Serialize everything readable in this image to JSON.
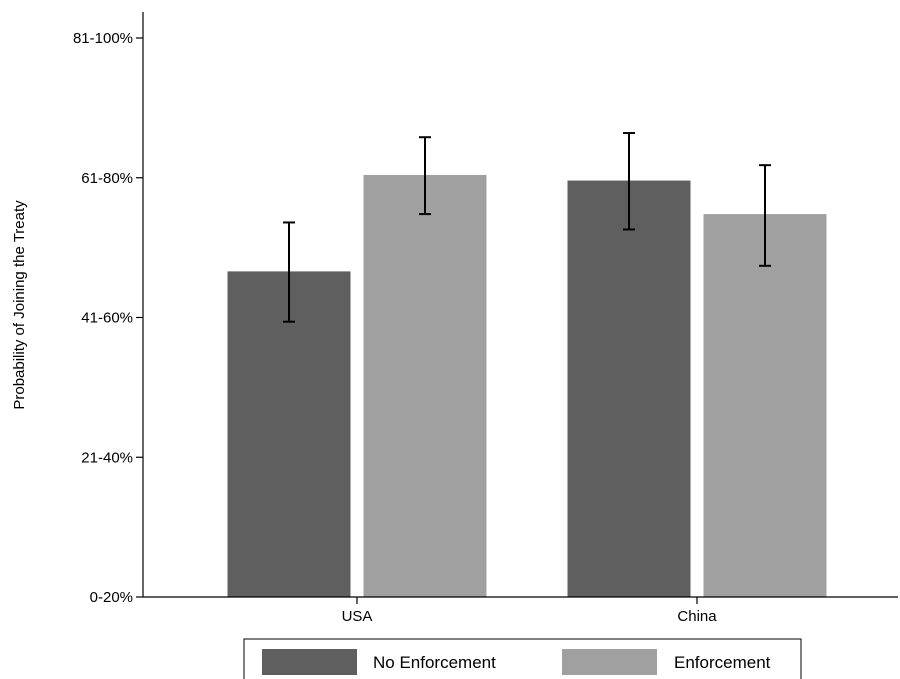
{
  "chart_data": {
    "type": "bar",
    "ylabel": "Probability of Joining the Treaty",
    "xlabel": "",
    "categories": [
      "USA",
      "China"
    ],
    "y_tick_labels": [
      "0-20%",
      "21-40%",
      "41-60%",
      "61-80%",
      "81-100%"
    ],
    "y_tick_values": [
      1,
      2,
      3,
      4,
      5
    ],
    "ylim": [
      1,
      5
    ],
    "grid": false,
    "legend_position": "bottom",
    "series": [
      {
        "name": "No Enforcement",
        "color": "#5f5f5f",
        "values": [
          3.33,
          3.98
        ],
        "ci_low": [
          2.97,
          3.63
        ],
        "ci_high": [
          3.68,
          4.32
        ]
      },
      {
        "name": "Enforcement",
        "color": "#a0a0a0",
        "values": [
          4.02,
          3.74
        ],
        "ci_low": [
          3.74,
          3.37
        ],
        "ci_high": [
          4.29,
          4.09
        ]
      }
    ]
  }
}
